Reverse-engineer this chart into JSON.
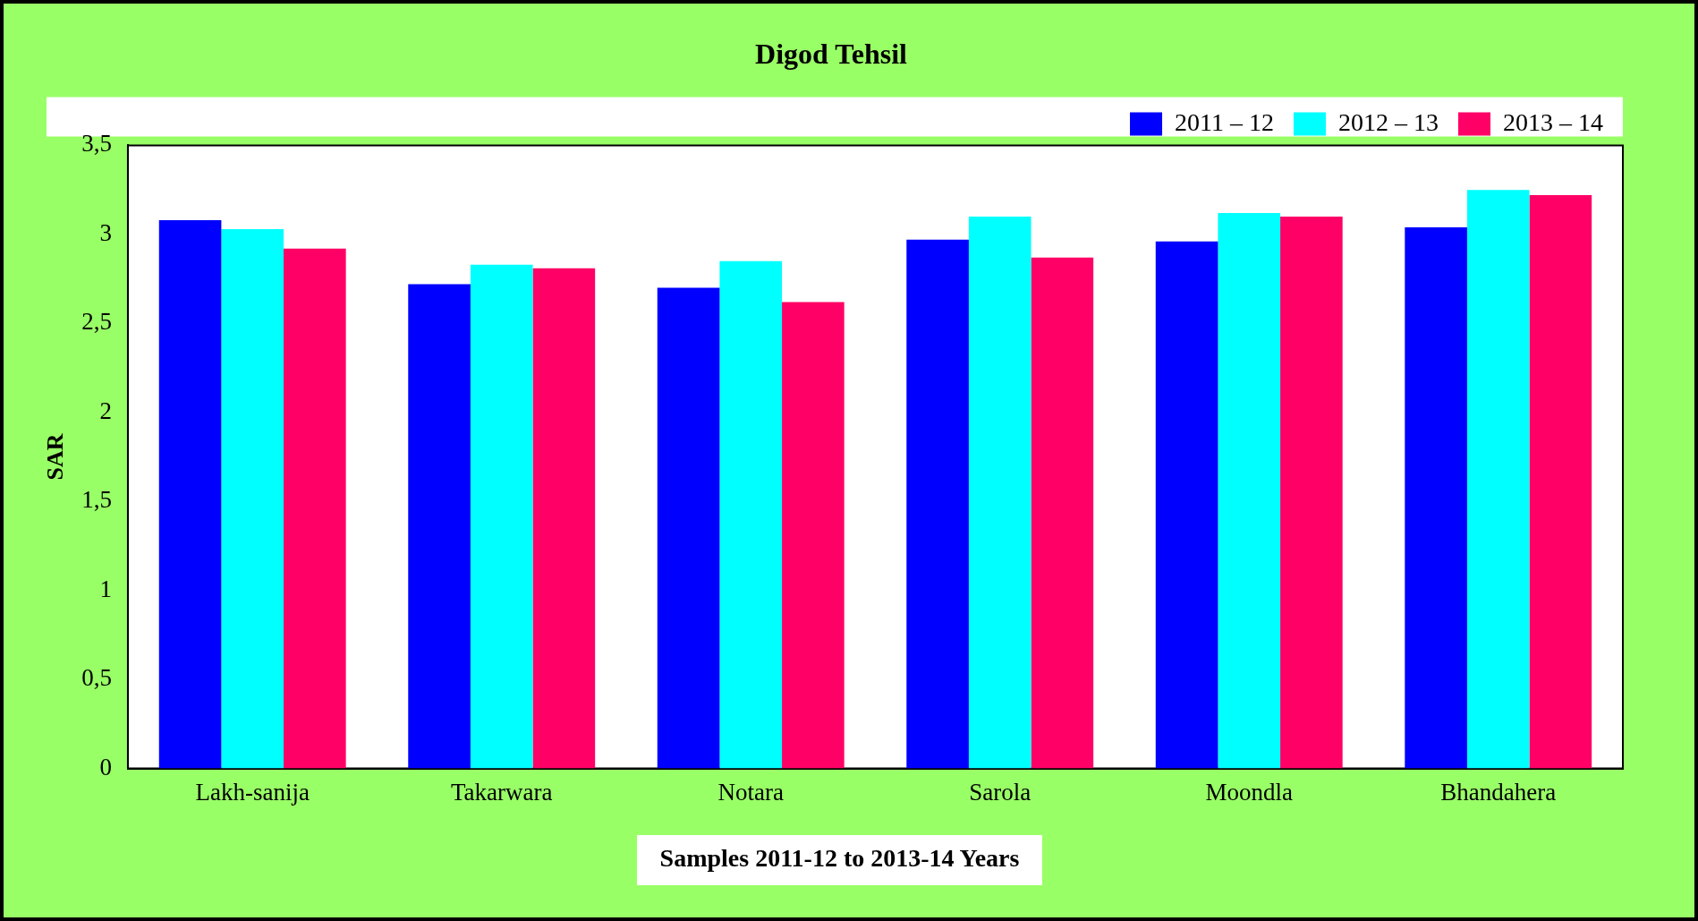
{
  "chart_data": {
    "type": "bar",
    "title": "Digod Tehsil",
    "xlabel": "Samples 2011-12 to 2013-14 Years",
    "ylabel": "SAR",
    "categories": [
      "Lakh-sanija",
      "Takarwara",
      "Notara",
      "Sarola",
      "Moondla",
      "Bhandahera"
    ],
    "series": [
      {
        "name": "2011 – 12",
        "color": "#0000ff",
        "values": [
          3.08,
          2.72,
          2.7,
          2.97,
          2.96,
          3.04
        ]
      },
      {
        "name": "2012 – 13",
        "color": "#00ffff",
        "values": [
          3.03,
          2.83,
          2.85,
          3.1,
          3.12,
          3.25
        ]
      },
      {
        "name": "2013 – 14",
        "color": "#ff0066",
        "values": [
          2.92,
          2.81,
          2.62,
          2.87,
          3.1,
          3.22
        ]
      }
    ],
    "ylim": [
      0,
      3.5
    ],
    "yticks": [
      0,
      {
        "value": 0.5,
        "label": "0,5"
      },
      1,
      {
        "value": 1.5,
        "label": "1,5"
      },
      2,
      {
        "value": 2.5,
        "label": "2,5"
      },
      3,
      {
        "value": 3.5,
        "label": "3,5"
      }
    ],
    "grid": false,
    "legend": "top right"
  }
}
